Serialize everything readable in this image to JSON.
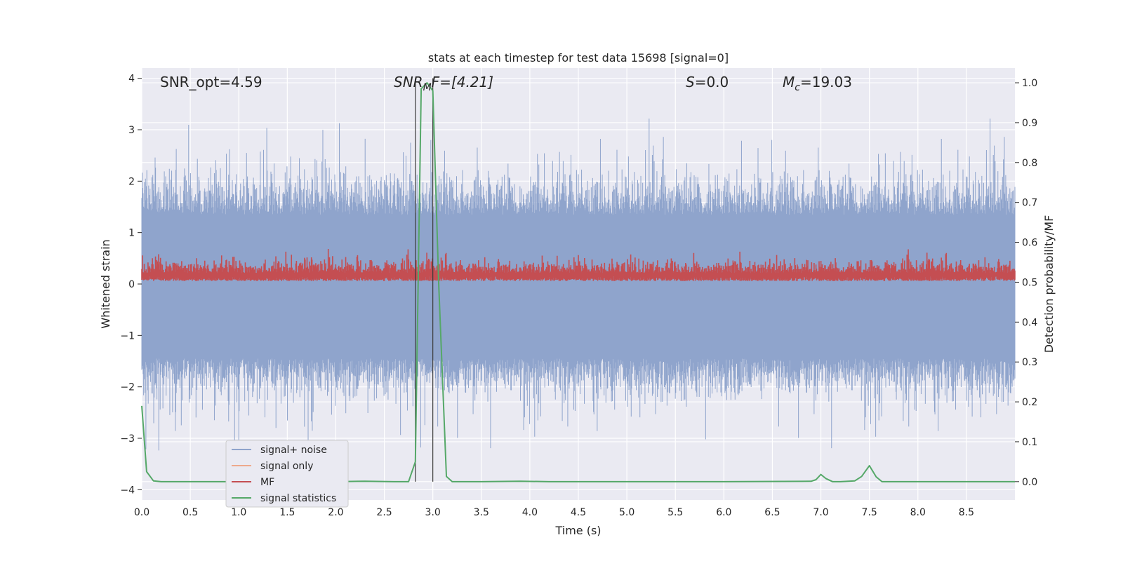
{
  "chart_data": {
    "type": "line",
    "title": "stats at each timestep for test data 15698 [signal=0]",
    "xlabel": "Time (s)",
    "ylabel_left": "Whitened strain",
    "ylabel_right": "Detection probability/MF",
    "xlim": [
      0.0,
      9.0
    ],
    "ylim_left": [
      -4.2,
      4.2
    ],
    "ylim_right": [
      -0.046,
      1.037
    ],
    "x_ticks": [
      "0.0",
      "0.5",
      "1.0",
      "1.5",
      "2.0",
      "2.5",
      "3.0",
      "3.5",
      "4.0",
      "4.5",
      "5.0",
      "5.5",
      "6.0",
      "6.5",
      "7.0",
      "7.5",
      "8.0",
      "8.5"
    ],
    "y_ticks_left": [
      "4",
      "3",
      "2",
      "1",
      "0",
      "−1",
      "−2",
      "−3",
      "−4"
    ],
    "y_ticks_right": [
      "1.0",
      "0.9",
      "0.8",
      "0.7",
      "0.6",
      "0.5",
      "0.4",
      "0.3",
      "0.2",
      "0.1",
      "0.0"
    ],
    "grid": true,
    "legend_position": "lower-left",
    "annotations": {
      "snr_opt": "SNR_opt=4.59",
      "snr_mf_main": "SNR",
      "snr_mf_sub": "M",
      "snr_mf_rest": "F=[4.21]",
      "s_var": "S",
      "s_val": "=0.0",
      "mc_var": "M",
      "mc_sub": "c",
      "mc_val": "=19.03"
    },
    "vertical_lines_x": [
      2.82,
      3.0
    ],
    "series": [
      {
        "name": "signal+ noise",
        "color": "#8fa4cc",
        "axis": "left",
        "description": "dense noise, approx. range -2.5 to 2.6 with spikes up to 3.6 and down to -4.0"
      },
      {
        "name": "signal only",
        "color": "#eea98c",
        "axis": "left",
        "values_note": "zero (signal=0)"
      },
      {
        "name": "MF",
        "color": "#c44e52",
        "axis": "right",
        "description": "dense noise between about 0.50 and 0.62"
      },
      {
        "name": "signal statistics",
        "color": "#55a868",
        "axis": "right",
        "x": [
          0.0,
          0.05,
          0.12,
          0.2,
          0.4,
          1.0,
          1.5,
          2.0,
          2.3,
          2.6,
          2.75,
          2.82,
          2.88,
          2.94,
          3.0,
          3.06,
          3.14,
          3.2,
          3.5,
          3.9,
          4.2,
          5.0,
          6.0,
          6.9,
          6.95,
          7.0,
          7.05,
          7.12,
          7.2,
          7.35,
          7.42,
          7.5,
          7.57,
          7.63,
          8.0,
          8.5,
          9.0
        ],
        "y": [
          0.19,
          0.025,
          0.002,
          0.0,
          0.0,
          0.0,
          0.001,
          0.0,
          0.001,
          0.0,
          0.0,
          0.05,
          0.985,
          1.0,
          0.98,
          0.5,
          0.013,
          0.0,
          0.0,
          0.001,
          0.0,
          0.0,
          0.0,
          0.001,
          0.005,
          0.018,
          0.008,
          0.0,
          0.0,
          0.002,
          0.013,
          0.04,
          0.012,
          0.0,
          0.0,
          0.0,
          0.0
        ]
      }
    ]
  }
}
